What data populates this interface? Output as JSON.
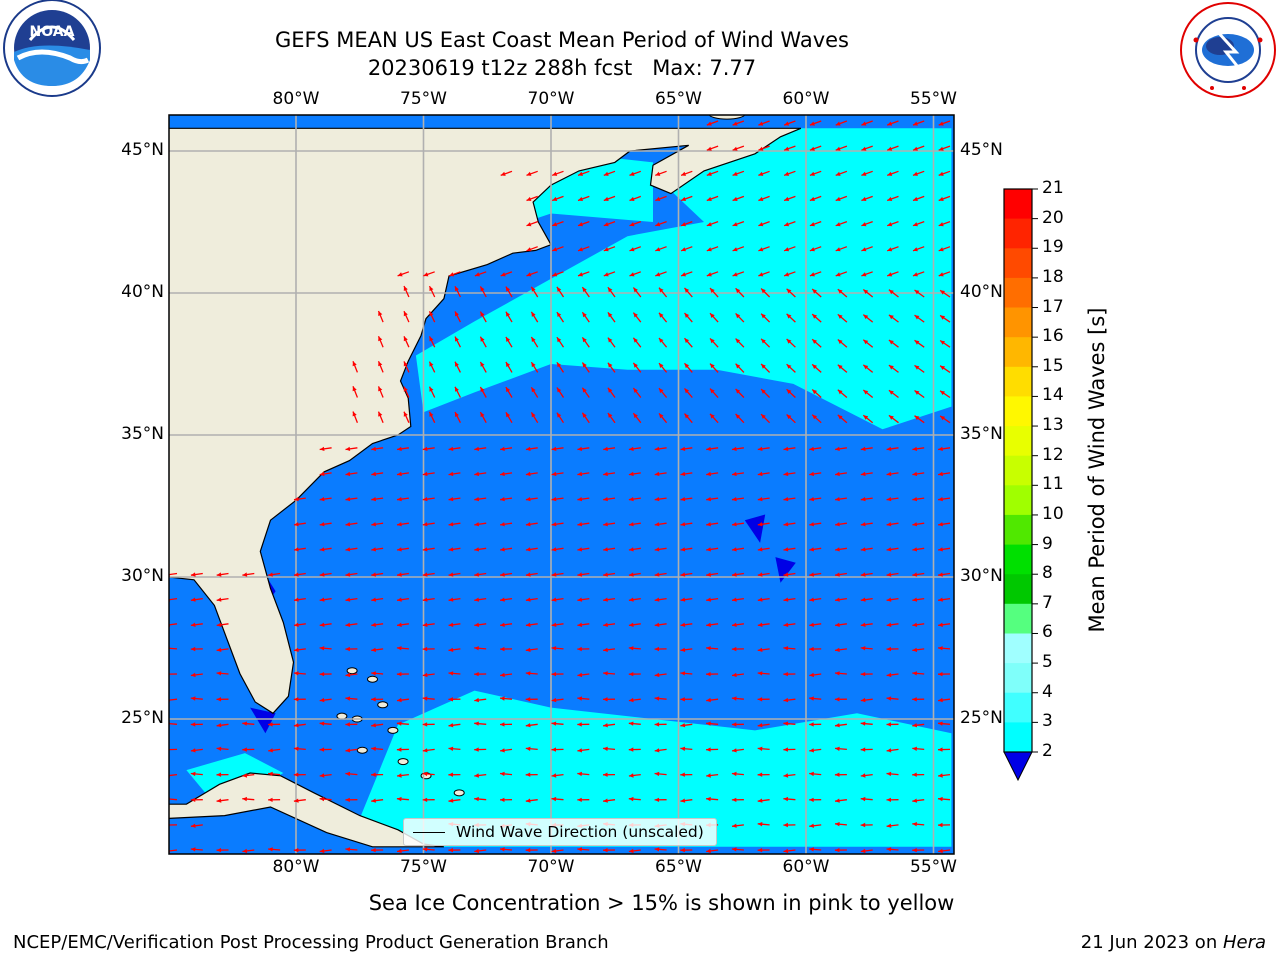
{
  "header": {
    "title_line1": "GEFS MEAN US East Coast Mean Period of Wind Waves",
    "title_line2": "20230619 t12z 288h fcst   Max: 7.77"
  },
  "logos": {
    "noara": {
      "label": "NOAA",
      "ring_text": "NATIONAL OCEANIC AND ATMOSPHERIC ADMINISTRATION · U.S. DEPARTMENT OF COMMERCE"
    },
    "nws": {
      "ring_text": "NATIONAL WEATHER SERVICE"
    }
  },
  "map": {
    "lon_ticks": [
      "80°W",
      "75°W",
      "70°W",
      "65°W",
      "60°W",
      "55°W"
    ],
    "lat_ticks": [
      "45°N",
      "40°N",
      "35°N",
      "30°N",
      "25°N"
    ],
    "lon_range": [
      -85,
      -54.3
    ],
    "lat_range": [
      20.5,
      45.8
    ],
    "colors": {
      "land": "#efeddc",
      "coast": "#000000",
      "grid": "#b0b0b0",
      "arrows": "#ff0000",
      "class_2_4": "#0a7cff",
      "class_4_6": "#00ffff",
      "class_6_8": "#7ffffa",
      "below_2": "#0000e6"
    },
    "legend_label": "Wind Wave Direction (unscaled)"
  },
  "colorbar": {
    "label": "Mean Period of Wind Waves [s]",
    "ticks": [
      "21",
      "20",
      "19",
      "18",
      "17",
      "16",
      "15",
      "14",
      "13",
      "12",
      "11",
      "10",
      "9",
      "8",
      "7",
      "6",
      "5",
      "4",
      "3",
      "2"
    ],
    "colors": [
      "#ff0000",
      "#ff2400",
      "#ff4a00",
      "#ff6e00",
      "#ff9400",
      "#ffb700",
      "#ffdd00",
      "#fff800",
      "#e8ff00",
      "#c8ff00",
      "#a0ff00",
      "#50e800",
      "#00e000",
      "#00c800",
      "#55ff7f",
      "#a0ffff",
      "#7ffffa",
      "#40ffff",
      "#00ffff",
      "#0a7cff"
    ],
    "extend_color": "#0000e6"
  },
  "captions": {
    "ice_note": "Sea Ice Concentration > 15% is shown in pink to yellow",
    "branch": "NCEP/EMC/Verification Post Processing Product Generation Branch",
    "date_prefix": "21 Jun 2023 on ",
    "machine": "Hera"
  }
}
